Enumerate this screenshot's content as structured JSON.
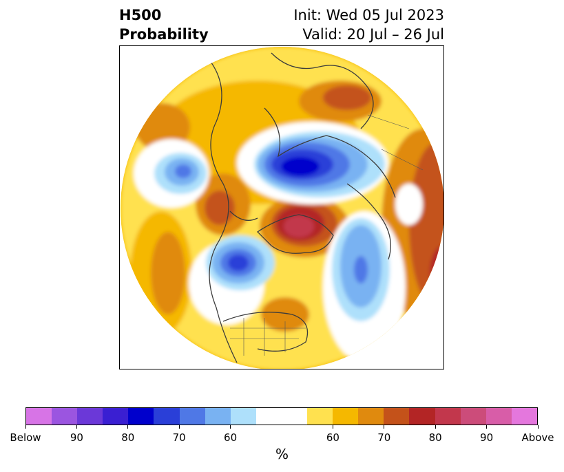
{
  "title": {
    "left_line1": "H500",
    "left_line2": "Probability",
    "right_line1": "Init: Wed 05 Jul 2023",
    "right_line2": "Valid: 20 Jul – 26 Jul"
  },
  "colorbar": {
    "label": "%",
    "colors": [
      "#d774e6",
      "#9b55e0",
      "#6b38d8",
      "#3a1fd2",
      "#0000cc",
      "#2a3fd8",
      "#4f78e6",
      "#79b2f2",
      "#aee0fb",
      "#ffffff",
      "#ffe14f",
      "#f5b800",
      "#e08a0e",
      "#c4521a",
      "#b32525",
      "#c2374c",
      "#cc4c7a",
      "#d85da8",
      "#e477dd"
    ],
    "ticks": [
      "Below",
      "90",
      "80",
      "70",
      "60",
      "60",
      "70",
      "80",
      "90",
      "Above"
    ]
  },
  "legend_tiers": {
    "below_colors": [
      "#d774e6",
      "#9b55e0",
      "#6b38d8",
      "#3a1fd2",
      "#0000cc",
      "#2a3fd8",
      "#4f78e6",
      "#79b2f2",
      "#aee0fb"
    ],
    "above_colors": [
      "#ffe14f",
      "#f5b800",
      "#e08a0e",
      "#c4521a",
      "#b32525",
      "#c2374c",
      "#cc4c7a",
      "#d85da8",
      "#e477dd"
    ]
  }
}
